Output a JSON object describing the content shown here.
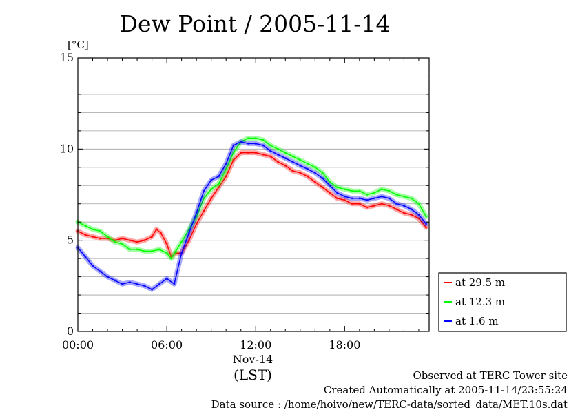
{
  "chart_data": {
    "type": "line",
    "title": "Dew Point / 2005-11-14",
    "ylabel": "[°C]",
    "xlabel": "(LST)",
    "x_date_label": "Nov-14",
    "ylim": [
      0,
      15
    ],
    "yticks": [
      "0",
      "5",
      "10",
      "15"
    ],
    "xlim": [
      0,
      23.7
    ],
    "xticks": [
      {
        "x": 0,
        "label": "00:00"
      },
      {
        "x": 6,
        "label": "06:00"
      },
      {
        "x": 12,
        "label": "12:00"
      },
      {
        "x": 18,
        "label": "18:00"
      }
    ],
    "grid": true,
    "legend": "bottom-right, outside plot",
    "series": [
      {
        "name": "at 29.5 m",
        "color": "#ff0000",
        "x": [
          0,
          0.5,
          1,
          1.5,
          2,
          2.5,
          3,
          3.5,
          4,
          4.5,
          5,
          5.3,
          5.6,
          6,
          6.3,
          6.6,
          7,
          7.5,
          8,
          8.5,
          9,
          9.5,
          10,
          10.5,
          11,
          11.5,
          12,
          12.5,
          13,
          13.5,
          14,
          14.5,
          15,
          15.5,
          16,
          16.5,
          17,
          17.5,
          18,
          18.5,
          19,
          19.5,
          20,
          20.5,
          21,
          21.5,
          22,
          22.5,
          23,
          23.5
        ],
        "y": [
          5.5,
          5.3,
          5.2,
          5.1,
          5.1,
          5.0,
          5.1,
          5.0,
          4.9,
          5.0,
          5.2,
          5.6,
          5.4,
          4.8,
          4.1,
          4.3,
          4.3,
          5.0,
          5.9,
          6.6,
          7.3,
          7.9,
          8.5,
          9.4,
          9.8,
          9.8,
          9.8,
          9.7,
          9.6,
          9.3,
          9.1,
          8.8,
          8.7,
          8.5,
          8.2,
          7.9,
          7.6,
          7.3,
          7.2,
          7.0,
          7.0,
          6.8,
          6.9,
          7.0,
          6.9,
          6.7,
          6.5,
          6.4,
          6.2,
          5.7
        ]
      },
      {
        "name": "at 12.3 m",
        "color": "#00ff00",
        "x": [
          0,
          0.5,
          1,
          1.5,
          2,
          2.5,
          3,
          3.5,
          4,
          4.5,
          5,
          5.5,
          6,
          6.3,
          6.6,
          7,
          7.5,
          8,
          8.5,
          9,
          9.5,
          10,
          10.5,
          11,
          11.5,
          12,
          12.5,
          13,
          13.5,
          14,
          14.5,
          15,
          15.5,
          16,
          16.5,
          17,
          17.5,
          18,
          18.5,
          19,
          19.5,
          20,
          20.5,
          21,
          21.5,
          22,
          22.5,
          23,
          23.5
        ],
        "y": [
          6.0,
          5.8,
          5.6,
          5.5,
          5.2,
          4.9,
          4.8,
          4.5,
          4.5,
          4.4,
          4.4,
          4.5,
          4.3,
          4.0,
          4.4,
          4.9,
          5.6,
          6.3,
          7.3,
          7.8,
          8.1,
          8.9,
          9.8,
          10.4,
          10.6,
          10.6,
          10.5,
          10.2,
          10.0,
          9.8,
          9.6,
          9.4,
          9.2,
          9.0,
          8.7,
          8.2,
          7.9,
          7.8,
          7.7,
          7.7,
          7.5,
          7.6,
          7.8,
          7.7,
          7.5,
          7.4,
          7.3,
          7.0,
          6.3
        ]
      },
      {
        "name": "at 1.6 m",
        "color": "#0000ff",
        "x": [
          0,
          0.5,
          1,
          1.5,
          2,
          2.5,
          3,
          3.5,
          4,
          4.5,
          5,
          5.5,
          6,
          6.5,
          7,
          7.5,
          8,
          8.5,
          9,
          9.5,
          10,
          10.5,
          11,
          11.5,
          12,
          12.5,
          13,
          13.5,
          14,
          14.5,
          15,
          15.5,
          16,
          16.5,
          17,
          17.5,
          18,
          18.5,
          19,
          19.5,
          20,
          20.5,
          21,
          21.5,
          22,
          22.5,
          23,
          23.5
        ],
        "y": [
          4.6,
          4.1,
          3.6,
          3.3,
          3.0,
          2.8,
          2.6,
          2.7,
          2.6,
          2.5,
          2.3,
          2.6,
          2.9,
          2.6,
          4.3,
          5.4,
          6.5,
          7.7,
          8.3,
          8.5,
          9.2,
          10.2,
          10.4,
          10.3,
          10.3,
          10.2,
          9.9,
          9.7,
          9.5,
          9.3,
          9.1,
          8.9,
          8.7,
          8.4,
          8.0,
          7.6,
          7.4,
          7.3,
          7.3,
          7.2,
          7.3,
          7.4,
          7.3,
          7.0,
          6.9,
          6.7,
          6.4,
          5.9
        ]
      }
    ]
  },
  "footer": {
    "line1": "Observed at TERC Tower site",
    "line2": "Created Automatically at 2005-11-14/23:55:24",
    "line3": "Data source : /home/hoivo/new/TERC-data/sorted_data/MET.10s.dat"
  }
}
